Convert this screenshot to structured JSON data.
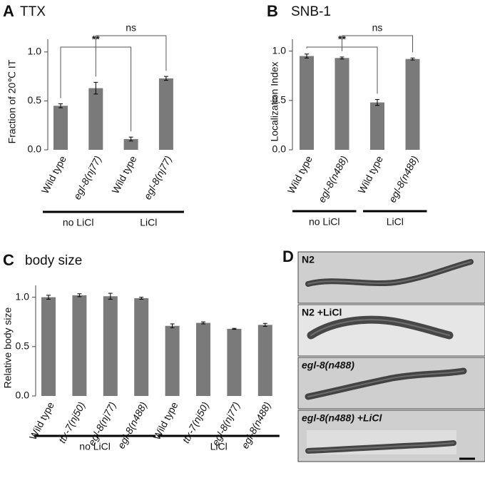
{
  "chart_data": [
    {
      "type": "bar",
      "panel": "A",
      "title": "TTX",
      "y_label": "Fraction of 20℃ IT",
      "categories": [
        "Wild type",
        "egl-8(nj77)",
        "Wild type",
        "egl-8(nj77)"
      ],
      "values": [
        0.45,
        0.63,
        0.11,
        0.73
      ],
      "errors": [
        0.02,
        0.06,
        0.02,
        0.02
      ],
      "groups": [
        "no LiCl",
        "LiCl"
      ],
      "annotations": [
        "**",
        "ns"
      ],
      "color": "#7a7a7a",
      "ylim": [
        0,
        1.13
      ],
      "yticks": [
        {
          "value": 0,
          "label": "0.0"
        },
        0.5,
        {
          "value": 1,
          "label": "1.0"
        }
      ]
    },
    {
      "type": "bar",
      "panel": "B",
      "title": "SNB-1",
      "y_label": "Localization  Index",
      "categories": [
        "Wild type",
        "egl-8(n488)",
        "Wild type",
        "egl-8(n488)"
      ],
      "values": [
        0.95,
        0.93,
        0.48,
        0.92
      ],
      "errors": [
        0.02,
        0.01,
        0.03,
        0.01
      ],
      "groups": [
        "no LiCl",
        "LiCl"
      ],
      "annotations": [
        "**",
        "ns"
      ],
      "color": "#7a7a7a",
      "ylim": [
        0,
        1.12
      ],
      "yticks": [
        {
          "value": 0,
          "label": "0.0"
        },
        0.5,
        {
          "value": 1,
          "label": "1.0"
        }
      ]
    },
    {
      "type": "bar",
      "panel": "C",
      "title": "body size",
      "y_label": "Relative body size",
      "categories": [
        "Wild type",
        "ttx-7(nj50)",
        "egl-8(nj77)",
        "egl-8(n488)",
        "Wild type",
        "ttx-7(nj50)",
        "egl-8(nj77)",
        "egl-8(n488)"
      ],
      "values": [
        1.0,
        1.02,
        1.01,
        0.99,
        0.71,
        0.74,
        0.68,
        0.72
      ],
      "errors": [
        0.02,
        0.015,
        0.03,
        0.01,
        0.02,
        0.01,
        0.005,
        0.015
      ],
      "groups": [
        "no LiCl",
        "LiCl"
      ],
      "color": "#7a7a7a",
      "ylim": [
        0,
        1.12
      ],
      "yticks": [
        {
          "value": 0,
          "label": "0.0"
        },
        0.5,
        {
          "value": 1,
          "label": "1.0"
        }
      ]
    }
  ],
  "panel_d": {
    "label": "D",
    "images": [
      "N2",
      "N2 +LiCl",
      "egl-8(n488)",
      "egl-8(n488) +LiCl"
    ]
  }
}
